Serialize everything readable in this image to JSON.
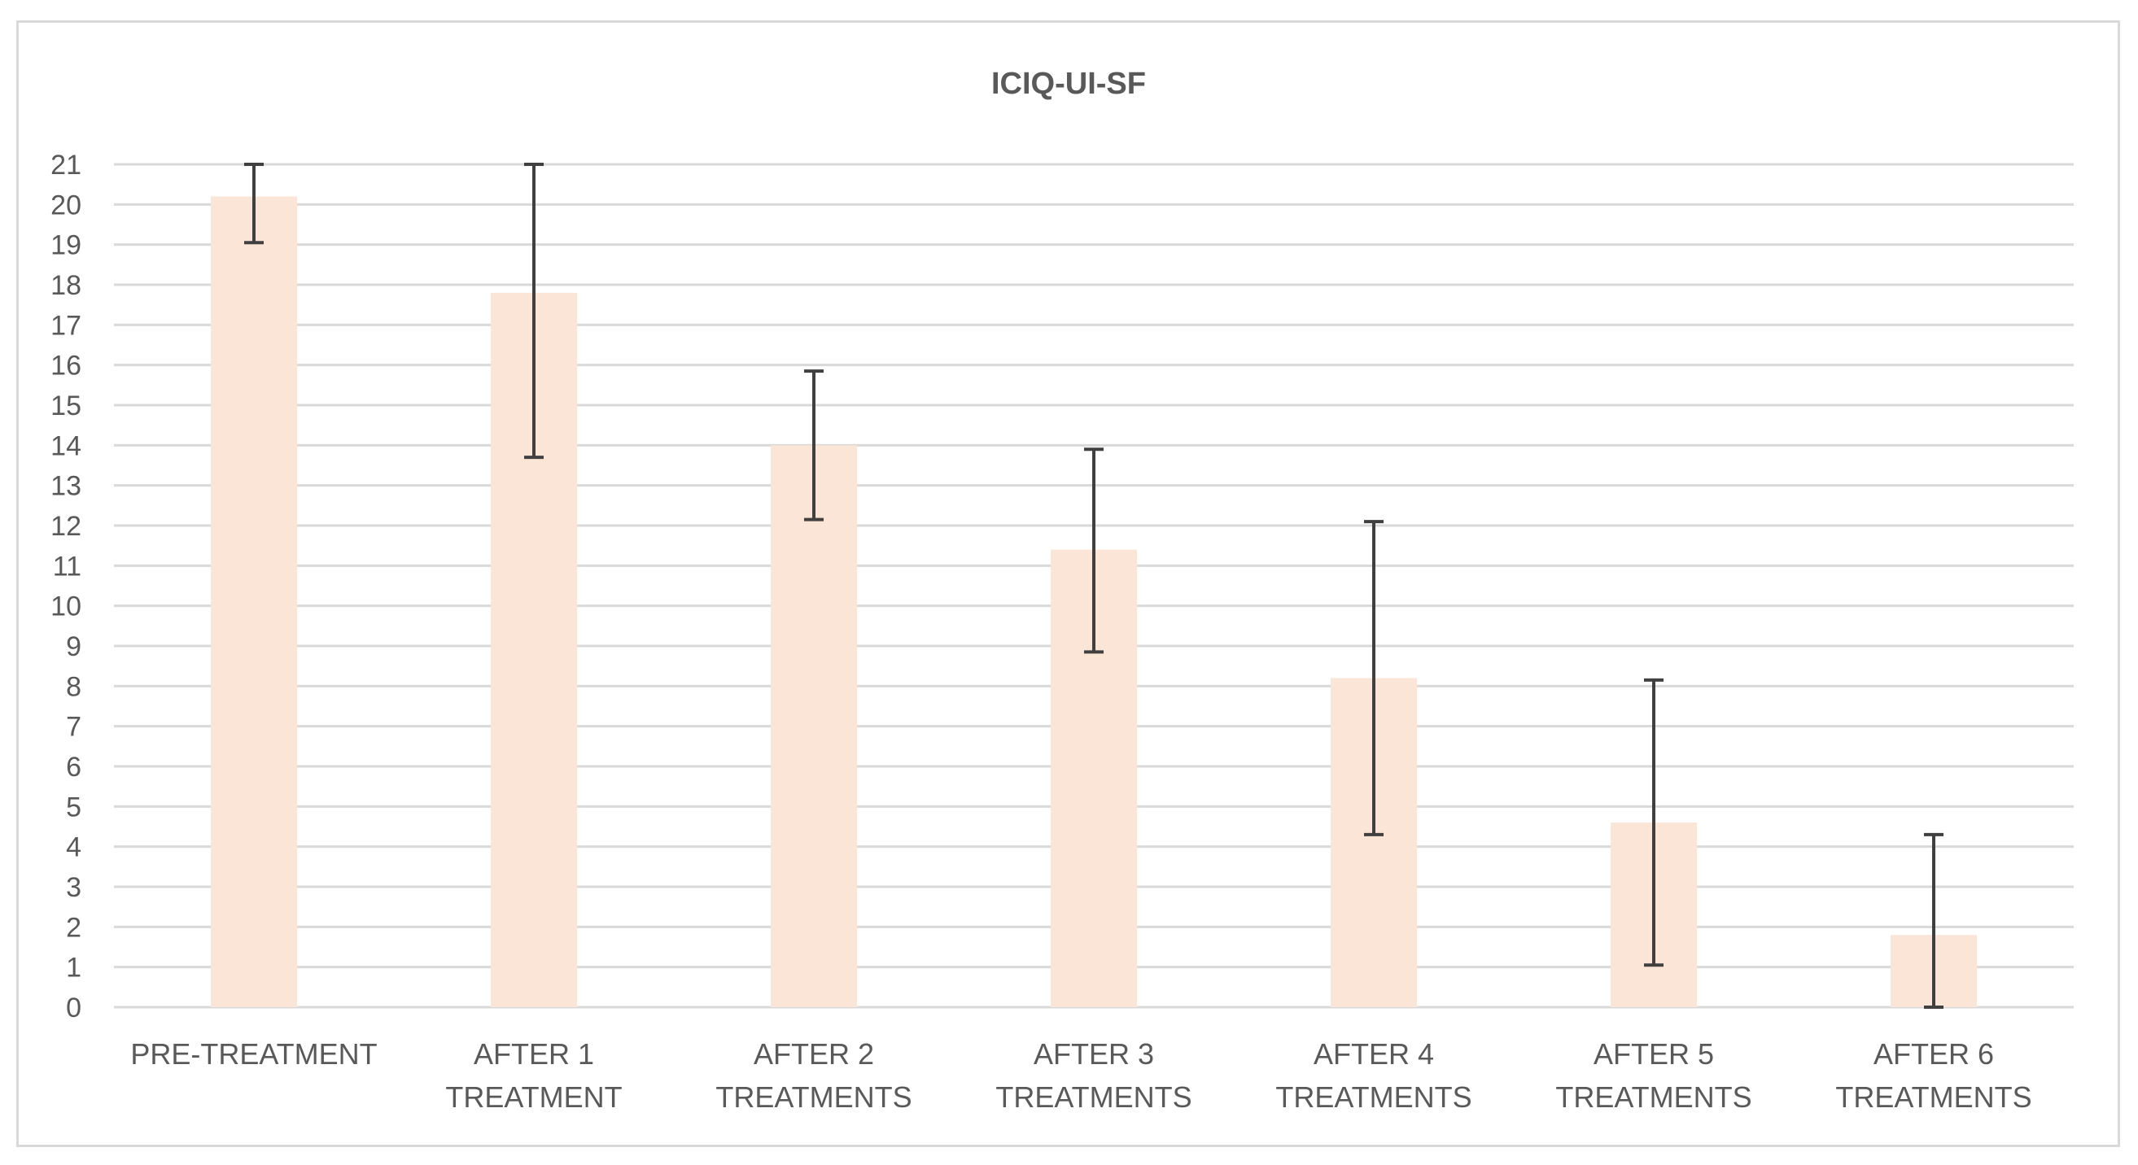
{
  "chart_data": {
    "type": "bar",
    "title": "ICIQ-UI-SF",
    "xlabel": "",
    "ylabel": "",
    "ylim": [
      0,
      21
    ],
    "yticks": [
      "0",
      "1",
      "2",
      "3",
      "4",
      "5",
      "6",
      "7",
      "8",
      "9",
      "10",
      "11",
      "12",
      "13",
      "14",
      "15",
      "16",
      "17",
      "18",
      "19",
      "20",
      "21"
    ],
    "grid": true,
    "legend": "none",
    "categories": [
      [
        "PRE-TREATMENT"
      ],
      [
        "AFTER 1",
        "TREATMENT"
      ],
      [
        "AFTER 2",
        "TREATMENTS"
      ],
      [
        "AFTER 3",
        "TREATMENTS"
      ],
      [
        "AFTER 4",
        "TREATMENTS"
      ],
      [
        "AFTER 5",
        "TREATMENTS"
      ],
      [
        "AFTER 6",
        "TREATMENTS"
      ]
    ],
    "values": [
      20.2,
      17.8,
      14.0,
      11.4,
      8.2,
      4.6,
      1.8
    ],
    "error_low": [
      19.05,
      13.7,
      12.15,
      8.85,
      4.3,
      1.05,
      0.0
    ],
    "error_high": [
      21.0,
      21.0,
      15.85,
      13.9,
      12.1,
      8.15,
      4.3
    ],
    "colors": {
      "bar": "#fbe5d6",
      "error_bar": "#404040",
      "grid": "#d9d9d9",
      "text": "#595959"
    }
  }
}
